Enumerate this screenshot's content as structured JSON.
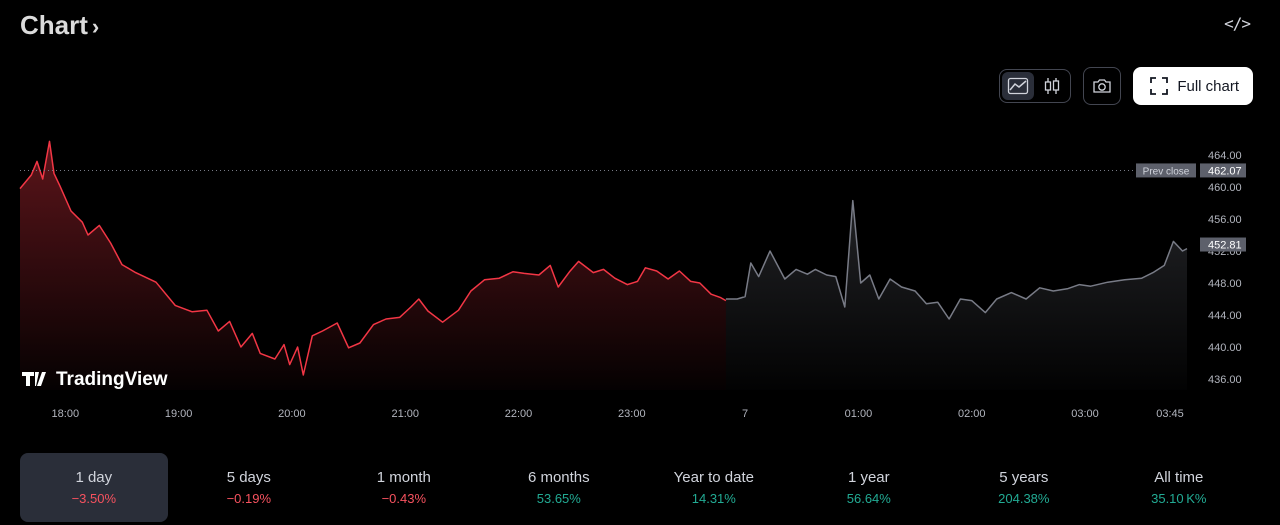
{
  "header": {
    "title": "Chart",
    "chevron": "›",
    "embed_icon": "</>"
  },
  "toolbar": {
    "area_icon": "area-chart-icon",
    "candles_icon": "candlestick-icon",
    "camera_icon": "camera-icon",
    "full_chart_label": "Full chart"
  },
  "watermark": {
    "text": "TradingView"
  },
  "chart_data": {
    "type": "area",
    "x_ticks": [
      "18:00",
      "19:00",
      "20:00",
      "21:00",
      "22:00",
      "23:00",
      "7",
      "01:00",
      "02:00",
      "03:00",
      "03:45"
    ],
    "y_ticks": [
      "464.00",
      "460.00",
      "456.00",
      "452.00",
      "448.00",
      "444.00",
      "440.00",
      "436.00"
    ],
    "ylim": [
      434.5,
      467.5
    ],
    "prev_close": {
      "label": "Prev close",
      "value": 462.07
    },
    "last_price": {
      "value": 452.81
    },
    "series": [
      {
        "session": "regular",
        "color": "#f23645",
        "points": [
          [
            17.6,
            459.8
          ],
          [
            17.7,
            461.5
          ],
          [
            17.75,
            463.2
          ],
          [
            17.8,
            461.0
          ],
          [
            17.86,
            465.7
          ],
          [
            17.9,
            461.7
          ],
          [
            17.95,
            460.2
          ],
          [
            18.05,
            457.0
          ],
          [
            18.15,
            455.6
          ],
          [
            18.2,
            454.0
          ],
          [
            18.3,
            455.2
          ],
          [
            18.4,
            453.0
          ],
          [
            18.5,
            450.3
          ],
          [
            18.62,
            449.3
          ],
          [
            18.8,
            448.1
          ],
          [
            18.97,
            445.2
          ],
          [
            19.12,
            444.4
          ],
          [
            19.25,
            444.6
          ],
          [
            19.35,
            442.0
          ],
          [
            19.45,
            443.2
          ],
          [
            19.55,
            440.0
          ],
          [
            19.65,
            441.7
          ],
          [
            19.72,
            439.2
          ],
          [
            19.85,
            438.5
          ],
          [
            19.93,
            440.3
          ],
          [
            19.98,
            437.8
          ],
          [
            20.05,
            440.0
          ],
          [
            20.1,
            436.5
          ],
          [
            20.18,
            441.4
          ],
          [
            20.27,
            442.0
          ],
          [
            20.4,
            443.0
          ],
          [
            20.5,
            439.9
          ],
          [
            20.6,
            440.5
          ],
          [
            20.72,
            442.8
          ],
          [
            20.83,
            443.5
          ],
          [
            20.95,
            443.7
          ],
          [
            21.05,
            445.0
          ],
          [
            21.12,
            446.0
          ],
          [
            21.2,
            444.5
          ],
          [
            21.33,
            443.1
          ],
          [
            21.47,
            444.6
          ],
          [
            21.58,
            447.0
          ],
          [
            21.7,
            448.4
          ],
          [
            21.83,
            448.6
          ],
          [
            21.95,
            449.4
          ],
          [
            22.05,
            449.2
          ],
          [
            22.18,
            449.0
          ],
          [
            22.28,
            450.2
          ],
          [
            22.35,
            447.5
          ],
          [
            22.45,
            449.4
          ],
          [
            22.53,
            450.7
          ],
          [
            22.66,
            449.3
          ],
          [
            22.75,
            449.7
          ],
          [
            22.85,
            448.6
          ],
          [
            22.96,
            447.8
          ],
          [
            23.05,
            448.2
          ],
          [
            23.12,
            449.9
          ],
          [
            23.22,
            449.5
          ],
          [
            23.32,
            448.5
          ],
          [
            23.42,
            449.5
          ],
          [
            23.52,
            448.2
          ],
          [
            23.6,
            448.0
          ],
          [
            23.7,
            446.6
          ],
          [
            23.78,
            446.2
          ],
          [
            23.83,
            445.8
          ]
        ]
      },
      {
        "session": "extended",
        "color": "#787b86",
        "points": [
          [
            23.83,
            446.0
          ],
          [
            23.93,
            446.0
          ],
          [
            24.0,
            446.3
          ],
          [
            24.05,
            450.5
          ],
          [
            24.12,
            448.8
          ],
          [
            24.22,
            452.0
          ],
          [
            24.35,
            448.5
          ],
          [
            24.45,
            449.7
          ],
          [
            24.55,
            449.1
          ],
          [
            24.62,
            449.7
          ],
          [
            24.72,
            449.0
          ],
          [
            24.8,
            448.8
          ],
          [
            24.88,
            445.0
          ],
          [
            24.95,
            458.3
          ],
          [
            25.02,
            448.0
          ],
          [
            25.1,
            449.0
          ],
          [
            25.18,
            446.0
          ],
          [
            25.28,
            448.5
          ],
          [
            25.38,
            447.5
          ],
          [
            25.5,
            447.0
          ],
          [
            25.6,
            445.4
          ],
          [
            25.7,
            445.6
          ],
          [
            25.8,
            443.5
          ],
          [
            25.9,
            446.0
          ],
          [
            26.0,
            445.8
          ],
          [
            26.12,
            444.3
          ],
          [
            26.22,
            446.0
          ],
          [
            26.35,
            446.8
          ],
          [
            26.48,
            446.0
          ],
          [
            26.6,
            447.4
          ],
          [
            26.72,
            447.0
          ],
          [
            26.85,
            447.3
          ],
          [
            26.95,
            447.8
          ],
          [
            27.05,
            447.6
          ],
          [
            27.2,
            448.1
          ],
          [
            27.35,
            448.4
          ],
          [
            27.5,
            448.6
          ],
          [
            27.6,
            449.3
          ],
          [
            27.7,
            450.2
          ],
          [
            27.78,
            453.2
          ],
          [
            27.86,
            452.0
          ],
          [
            27.9,
            452.3
          ]
        ]
      }
    ]
  },
  "periods": [
    {
      "label": "1 day",
      "change": "−3.50%",
      "dir": "neg",
      "active": true
    },
    {
      "label": "5 days",
      "change": "−0.19%",
      "dir": "neg",
      "active": false
    },
    {
      "label": "1 month",
      "change": "−0.43%",
      "dir": "neg",
      "active": false
    },
    {
      "label": "6 months",
      "change": "53.65%",
      "dir": "pos",
      "active": false
    },
    {
      "label": "Year to date",
      "change": "14.31%",
      "dir": "pos",
      "active": false
    },
    {
      "label": "1 year",
      "change": "56.64%",
      "dir": "pos",
      "active": false
    },
    {
      "label": "5 years",
      "change": "204.38%",
      "dir": "pos",
      "active": false
    },
    {
      "label": "All time",
      "change": "35.10 K%",
      "dir": "pos",
      "active": false
    }
  ]
}
